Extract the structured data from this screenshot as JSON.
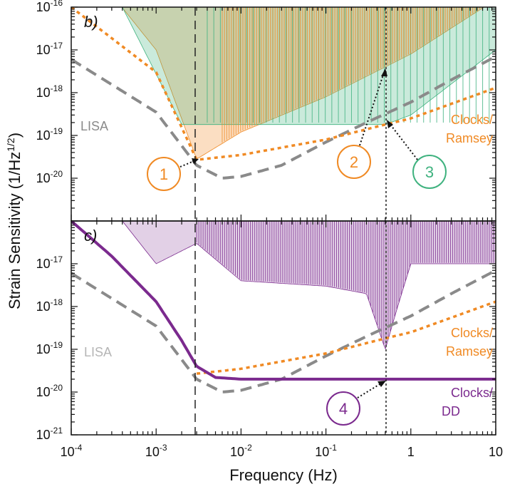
{
  "axes": {
    "xlabel": "Frequency (Hz)",
    "ylabel_main": "Strain Sensitivity (1/Hz",
    "ylabel_sup": "1/2",
    "ylabel_close": ")"
  },
  "colors": {
    "orange": "#f08a24",
    "green": "#3fb27f",
    "purple": "#7b2a8e",
    "gray": "#8a8a8a"
  },
  "chart_data": [
    {
      "type": "line",
      "panel": "b)",
      "xscale": "log",
      "yscale": "log",
      "xlim": [
        0.0001,
        10
      ],
      "ylim": [
        1e-21,
        1e-16
      ],
      "y_ticks": [
        {
          "base": "10",
          "exp": "-16"
        },
        {
          "base": "10",
          "exp": "-17"
        },
        {
          "base": "10",
          "exp": "-18"
        },
        {
          "base": "10",
          "exp": "-19"
        },
        {
          "base": "10",
          "exp": "-20"
        }
      ],
      "series": [
        {
          "name": "LISA",
          "style": "gray dashed",
          "x": [
            0.0001,
            0.001,
            0.003,
            0.006,
            0.01,
            0.03,
            0.1,
            0.3,
            1,
            3,
            10
          ],
          "y": [
            6e-18,
            3.5e-19,
            2e-20,
            1e-20,
            1.1e-20,
            2e-20,
            7e-20,
            2e-19,
            6e-19,
            2e-18,
            7e-18
          ]
        },
        {
          "name": "Clocks/ Ramsey",
          "style": "orange dotted",
          "x": [
            0.0001,
            0.001,
            0.003,
            0.01,
            0.1,
            0.5,
            1,
            10
          ],
          "y": [
            1e-16,
            3e-18,
            2.7e-20,
            3.5e-20,
            8e-20,
            1.8e-19,
            2.5e-19,
            1.3e-18
          ]
        }
      ],
      "shaded_regions": [
        {
          "color": "orange",
          "description": "orange sensitivity band"
        },
        {
          "color": "green",
          "description": "green sensitivity band"
        }
      ],
      "vlines": [
        0.003,
        0.5
      ],
      "callouts": [
        "1",
        "2",
        "3"
      ]
    },
    {
      "type": "line",
      "panel": "c)",
      "xscale": "log",
      "yscale": "log",
      "xlim": [
        0.0001,
        10
      ],
      "ylim": [
        1e-21,
        1e-16
      ],
      "x_ticks": [
        {
          "base": "10",
          "exp": "-4"
        },
        {
          "base": "10",
          "exp": "-3"
        },
        {
          "base": "10",
          "exp": "-2"
        },
        {
          "base": "10",
          "exp": "-1"
        },
        {
          "base": "1",
          "exp": ""
        },
        {
          "base": "10",
          "exp": ""
        }
      ],
      "y_ticks": [
        {
          "base": "10",
          "exp": "-17"
        },
        {
          "base": "10",
          "exp": "-18"
        },
        {
          "base": "10",
          "exp": "-19"
        },
        {
          "base": "10",
          "exp": "-20"
        },
        {
          "base": "10",
          "exp": "-21"
        }
      ],
      "series": [
        {
          "name": "LISA",
          "style": "gray dashed",
          "x": [
            0.0001,
            0.001,
            0.003,
            0.006,
            0.01,
            0.03,
            0.1,
            0.3,
            1,
            3,
            10
          ],
          "y": [
            6e-18,
            3.5e-19,
            2e-20,
            1e-20,
            1.1e-20,
            2e-20,
            7e-20,
            2e-19,
            6e-19,
            2e-18,
            7e-18
          ]
        },
        {
          "name": "Clocks/ Ramsey",
          "style": "orange dotted",
          "x": [
            0.003,
            0.01,
            0.1,
            0.5,
            1,
            10
          ],
          "y": [
            2.7e-20,
            3.5e-20,
            8e-20,
            1.8e-19,
            2.5e-19,
            1.3e-18
          ]
        },
        {
          "name": "Clocks/ DD",
          "style": "purple solid",
          "x": [
            0.0001,
            0.0003,
            0.001,
            0.002,
            0.003,
            0.005,
            0.01,
            0.1,
            1,
            10
          ],
          "y": [
            1e-16,
            1.5e-17,
            1.3e-18,
            1.6e-19,
            4e-20,
            2.2e-20,
            2e-20,
            2e-20,
            2e-20,
            2e-20
          ]
        }
      ],
      "shaded_regions": [
        {
          "color": "purple",
          "description": "purple sensitivity band"
        }
      ],
      "vlines": [
        0.003,
        0.5
      ],
      "callouts": [
        "4"
      ]
    }
  ],
  "labels": {
    "panel_b": "b)",
    "panel_c": "c)",
    "lisa_b": "LISA",
    "lisa_c": "LISA",
    "clocks_ramsey_b_1": "Clocks/",
    "clocks_ramsey_b_2": "Ramsey",
    "clocks_ramsey_c_1": "Clocks/",
    "clocks_ramsey_c_2": "Ramsey",
    "clocks_dd_1": "Clocks/",
    "clocks_dd_2": "DD",
    "callout_1": "1",
    "callout_2": "2",
    "callout_3": "3",
    "callout_4": "4"
  }
}
